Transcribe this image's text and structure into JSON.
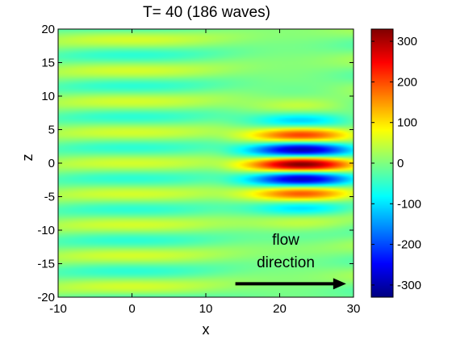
{
  "chart_data": {
    "type": "heatmap",
    "title": "T= 40   (186 waves)",
    "xlabel": "x",
    "ylabel": "z",
    "xlim": [
      -10,
      30
    ],
    "ylim": [
      -20,
      20
    ],
    "x_ticks": [
      "-10",
      "0",
      "10",
      "20",
      "30"
    ],
    "y_ticks": [
      "20",
      "15",
      "10",
      "5",
      "0",
      "-5",
      "-10",
      "-15",
      "-20"
    ],
    "colorbar": {
      "colormap": "jet",
      "range": [
        -330,
        330
      ],
      "ticks": [
        "300",
        "200",
        "100",
        "0",
        "-100",
        "-200",
        "-300"
      ]
    },
    "field": {
      "description_of_values": "wave amplitude",
      "packet_center": [
        23,
        0
      ],
      "packet_peak_amplitude": 330,
      "background_amplitude": 55
    },
    "annotation": {
      "line1": "flow",
      "line2": "direction",
      "arrow_from": [
        14,
        -18
      ],
      "arrow_to": [
        29,
        -18
      ]
    }
  }
}
